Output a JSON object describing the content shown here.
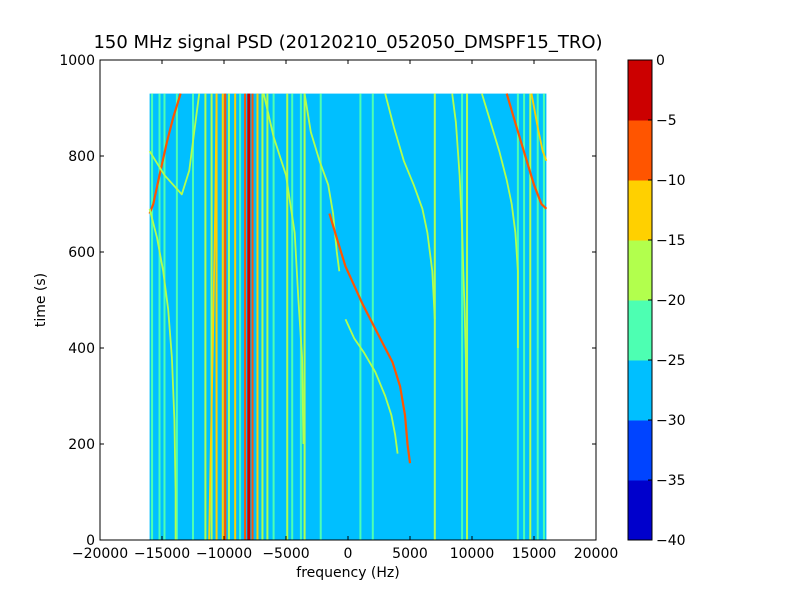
{
  "chart_data": {
    "type": "heatmap",
    "title": "150 MHz signal PSD (20120210_052050_DMSPF15_TRO)",
    "xlabel": "frequency (Hz)",
    "ylabel": "time (s)",
    "xlim": [
      -20000,
      20000
    ],
    "ylim": [
      0,
      1000
    ],
    "x_ticks": [
      -20000,
      -15000,
      -10000,
      -5000,
      0,
      5000,
      10000,
      15000,
      20000
    ],
    "x_tick_labels": [
      "−20000",
      "−15000",
      "−10000",
      "−5000",
      "0",
      "5000",
      "10000",
      "15000",
      "20000"
    ],
    "y_ticks": [
      0,
      200,
      400,
      600,
      800,
      1000
    ],
    "y_tick_labels": [
      "0",
      "200",
      "400",
      "600",
      "800",
      "1000"
    ],
    "data_extent": {
      "freq_min": -16000,
      "freq_max": 16000,
      "time_min": 0,
      "time_max": 930
    },
    "background_level_db": -27.5,
    "colorbar": {
      "levels": [
        -40,
        -35,
        -30,
        -25,
        -20,
        -15,
        -10,
        -5,
        0
      ],
      "tick_labels": [
        "−40",
        "−35",
        "−30",
        "−25",
        "−20",
        "−15",
        "−10",
        "−5",
        "0"
      ],
      "colors": [
        "#0000cc",
        "#0044ff",
        "#00bfff",
        "#4dffb2",
        "#b2ff4d",
        "#ffd000",
        "#ff5500",
        "#cc0000"
      ]
    },
    "vertical_lines": [
      {
        "freq": -15800,
        "level": -22.5
      },
      {
        "freq": -15200,
        "level": -22.5
      },
      {
        "freq": -14800,
        "level": -22.5
      },
      {
        "freq": -13800,
        "level": -22.5
      },
      {
        "freq": -12500,
        "level": -22.5
      },
      {
        "freq": -11500,
        "level": -17.5
      },
      {
        "freq": -11000,
        "level": -17.5
      },
      {
        "freq": -10600,
        "level": -12.5
      },
      {
        "freq": -10100,
        "level": -12.5
      },
      {
        "freq": -9600,
        "level": -17.5
      },
      {
        "freq": -9100,
        "level": -12.5
      },
      {
        "freq": -8700,
        "level": -22.5
      },
      {
        "freq": -8300,
        "level": -7.5
      },
      {
        "freq": -8000,
        "level": -2.5
      },
      {
        "freq": -7700,
        "level": -7.5
      },
      {
        "freq": -7300,
        "level": -12.5
      },
      {
        "freq": -6900,
        "level": -17.5
      },
      {
        "freq": -6500,
        "level": -17.5
      },
      {
        "freq": -6000,
        "level": -22.5
      },
      {
        "freq": -4900,
        "level": -17.5
      },
      {
        "freq": -4500,
        "level": -22.5
      },
      {
        "freq": -3800,
        "level": -22.5
      },
      {
        "freq": -3500,
        "level": -17.5
      },
      {
        "freq": -2200,
        "level": -22.5
      },
      {
        "freq": 1000,
        "level": -22.5
      },
      {
        "freq": 2000,
        "level": -22.5
      },
      {
        "freq": 7000,
        "level": -17.5
      },
      {
        "freq": 9200,
        "level": -22.5
      },
      {
        "freq": 9600,
        "level": -17.5
      },
      {
        "freq": 13700,
        "level": -22.5
      },
      {
        "freq": 14200,
        "level": -22.5
      },
      {
        "freq": 14700,
        "level": -17.5
      },
      {
        "freq": 15300,
        "level": -22.5
      },
      {
        "freq": 15800,
        "level": -22.5
      }
    ],
    "doppler_tracks": [
      {
        "points": [
          [
            -13500,
            930
          ],
          [
            -14100,
            880
          ],
          [
            -14600,
            830
          ],
          [
            -15200,
            760
          ],
          [
            -15700,
            700
          ],
          [
            -16000,
            680
          ]
        ],
        "level": -7.5
      },
      {
        "points": [
          [
            -12000,
            930
          ],
          [
            -12400,
            850
          ],
          [
            -12800,
            770
          ],
          [
            -13400,
            720
          ],
          [
            -14800,
            760
          ],
          [
            -16000,
            810
          ]
        ],
        "level": -17.5
      },
      {
        "points": [
          [
            -16000,
            690
          ],
          [
            -15400,
            630
          ],
          [
            -14900,
            560
          ],
          [
            -14500,
            480
          ],
          [
            -14200,
            380
          ],
          [
            -14000,
            250
          ],
          [
            -13900,
            100
          ],
          [
            -13900,
            0
          ]
        ],
        "level": -17.5
      },
      {
        "points": [
          [
            -10600,
            930
          ],
          [
            -10700,
            700
          ],
          [
            -10900,
            400
          ],
          [
            -11100,
            150
          ],
          [
            -11200,
            0
          ]
        ],
        "level": -12.5
      },
      {
        "points": [
          [
            -9900,
            930
          ],
          [
            -9900,
            600
          ],
          [
            -9900,
            300
          ],
          [
            -9900,
            0
          ]
        ],
        "level": -7.5
      },
      {
        "points": [
          [
            -6800,
            930
          ],
          [
            -6000,
            840
          ],
          [
            -5000,
            760
          ],
          [
            -4300,
            640
          ],
          [
            -4000,
            500
          ],
          [
            -3700,
            380
          ],
          [
            -3600,
            200
          ]
        ],
        "level": -17.5
      },
      {
        "points": [
          [
            -3500,
            930
          ],
          [
            -3000,
            850
          ],
          [
            -2300,
            790
          ],
          [
            -1600,
            740
          ],
          [
            -1200,
            680
          ],
          [
            -900,
            600
          ],
          [
            -700,
            560
          ]
        ],
        "level": -17.5
      },
      {
        "points": [
          [
            -1500,
            680
          ],
          [
            -800,
            620
          ],
          [
            -200,
            570
          ],
          [
            500,
            530
          ],
          [
            1200,
            490
          ],
          [
            2000,
            450
          ],
          [
            2800,
            410
          ],
          [
            3600,
            370
          ],
          [
            4200,
            320
          ],
          [
            4600,
            260
          ],
          [
            4800,
            200
          ],
          [
            5000,
            160
          ]
        ],
        "level": -7.5
      },
      {
        "points": [
          [
            -200,
            460
          ],
          [
            500,
            420
          ],
          [
            1300,
            390
          ],
          [
            2200,
            350
          ],
          [
            3000,
            300
          ],
          [
            3500,
            260
          ],
          [
            3800,
            220
          ],
          [
            4000,
            180
          ]
        ],
        "level": -17.5
      },
      {
        "points": [
          [
            3000,
            930
          ],
          [
            3700,
            860
          ],
          [
            4500,
            790
          ],
          [
            5300,
            740
          ],
          [
            6000,
            690
          ],
          [
            6400,
            640
          ],
          [
            6800,
            560
          ],
          [
            7000,
            460
          ]
        ],
        "level": -17.5
      },
      {
        "points": [
          [
            8400,
            930
          ],
          [
            8700,
            870
          ],
          [
            9000,
            760
          ],
          [
            9200,
            650
          ],
          [
            9300,
            560
          ],
          [
            9400,
            480
          ],
          [
            9500,
            380
          ],
          [
            9600,
            200
          ],
          [
            9600,
            0
          ]
        ],
        "level": -17.5
      },
      {
        "points": [
          [
            10800,
            930
          ],
          [
            11500,
            870
          ],
          [
            12200,
            810
          ],
          [
            12800,
            750
          ],
          [
            13200,
            700
          ],
          [
            13500,
            640
          ],
          [
            13700,
            560
          ],
          [
            13700,
            400
          ]
        ],
        "level": -17.5
      },
      {
        "points": [
          [
            12800,
            930
          ],
          [
            13600,
            860
          ],
          [
            14300,
            800
          ],
          [
            15000,
            740
          ],
          [
            15600,
            700
          ],
          [
            16000,
            690
          ]
        ],
        "level": -7.5
      },
      {
        "points": [
          [
            14800,
            930
          ],
          [
            15300,
            860
          ],
          [
            15700,
            810
          ],
          [
            16000,
            790
          ]
        ],
        "level": -12.5
      }
    ]
  }
}
